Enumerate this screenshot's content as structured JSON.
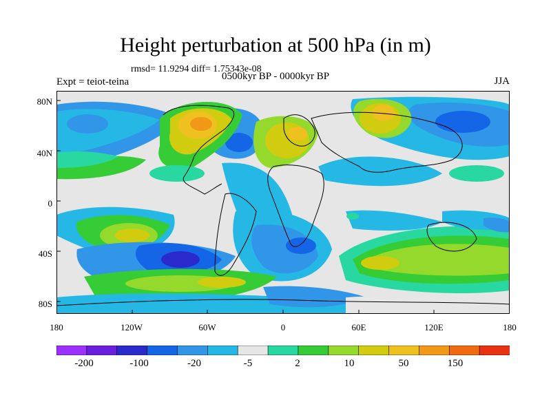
{
  "header": {
    "title": "Height perturbation at 500 hPa (in m)",
    "stats": "rmsd= 11.9294 diff= 1.75343e-08",
    "experiment": "Expt = teiot-teina",
    "period": "0500kyr BP - 0000kyr BP",
    "season": "JJA"
  },
  "axes": {
    "y_ticks": [
      "80N",
      "40N",
      "0",
      "40S",
      "80S"
    ],
    "x_ticks": [
      "180",
      "120W",
      "60W",
      "0",
      "60E",
      "120E",
      "180"
    ]
  },
  "colorbar": {
    "labels": [
      "-200",
      "-100",
      "-20",
      "-5",
      "2",
      "10",
      "50",
      "150"
    ],
    "colors": [
      "#9b30ff",
      "#6a1fe0",
      "#2a2acc",
      "#1566e6",
      "#3196e8",
      "#26b8e4",
      "#e6e6e6",
      "#28d8a0",
      "#35cc35",
      "#95d92c",
      "#d2cc10",
      "#eec020",
      "#f29818",
      "#f06a10",
      "#e83212"
    ]
  },
  "colors": {
    "neutral": "#e6e6e6",
    "coast": "#000000"
  }
}
